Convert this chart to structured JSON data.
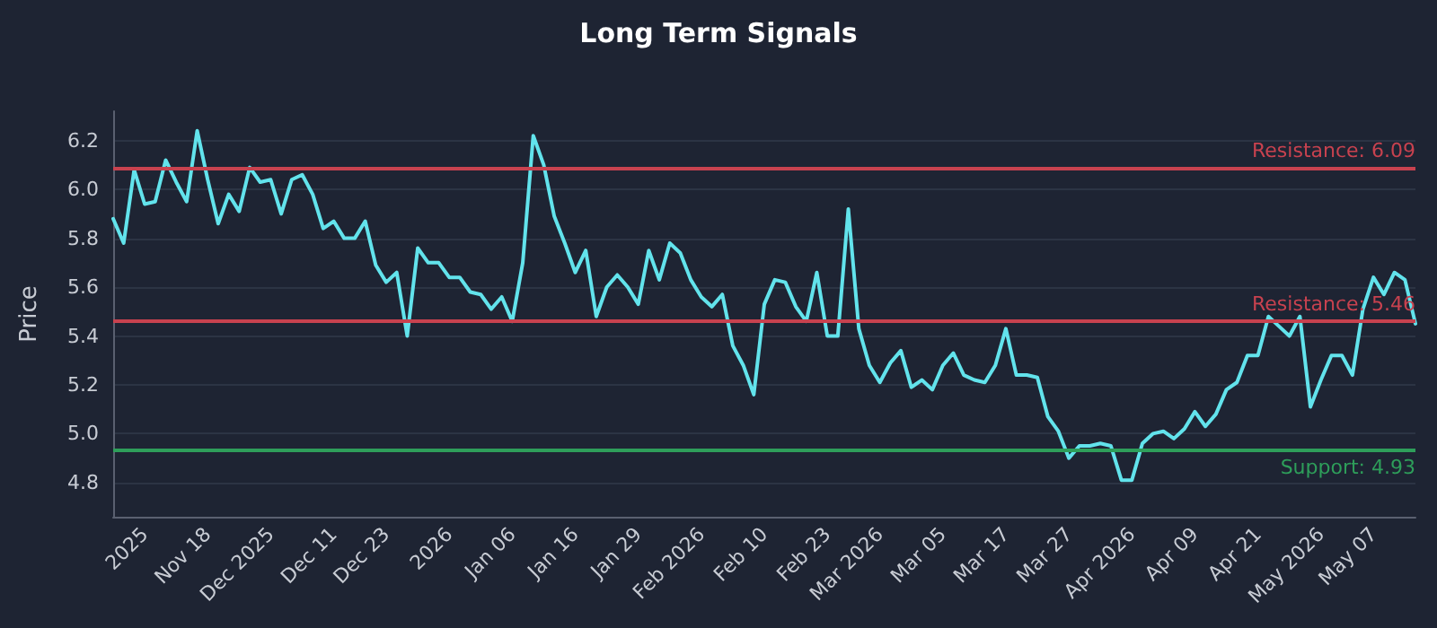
{
  "chart_data": {
    "type": "line",
    "title": "Long Term Signals",
    "ylabel": "Price",
    "categories": [
      null,
      null,
      null,
      "2025",
      null,
      null,
      null,
      null,
      null,
      "Nov 18",
      null,
      null,
      null,
      null,
      null,
      "Dec 2025",
      null,
      null,
      null,
      null,
      null,
      "Dec 11",
      null,
      null,
      null,
      null,
      "Dec 23",
      null,
      null,
      null,
      null,
      null,
      "2026",
      null,
      null,
      null,
      null,
      null,
      "Jan 06",
      null,
      null,
      null,
      null,
      null,
      "Jan 16",
      null,
      null,
      null,
      null,
      null,
      "Jan 29",
      null,
      null,
      null,
      null,
      null,
      "Feb 2026",
      null,
      null,
      null,
      null,
      null,
      "Feb 10",
      null,
      null,
      null,
      null,
      null,
      "Feb 23",
      null,
      null,
      null,
      null,
      "Mar 2026",
      null,
      null,
      null,
      null,
      null,
      "Mar 05",
      null,
      null,
      null,
      null,
      null,
      "Mar 17",
      null,
      null,
      null,
      null,
      null,
      "Mar 27",
      null,
      null,
      null,
      null,
      null,
      "Apr 2026",
      null,
      null,
      null,
      null,
      null,
      "Apr 09",
      null,
      null,
      null,
      null,
      null,
      "Apr 21",
      null,
      null,
      null,
      null,
      null,
      "May 2026",
      null,
      null,
      null,
      null,
      "May 07",
      null,
      null,
      null,
      null
    ],
    "series": [
      {
        "color": "#62e3ec",
        "values": [
          5.88,
          5.78,
          6.08,
          5.94,
          5.95,
          6.12,
          6.03,
          5.95,
          6.24,
          6.04,
          5.86,
          5.98,
          5.91,
          6.09,
          6.03,
          6.04,
          5.9,
          6.04,
          6.06,
          5.98,
          5.84,
          5.87,
          5.8,
          5.8,
          5.87,
          5.69,
          5.62,
          5.66,
          5.4,
          5.76,
          5.7,
          5.7,
          5.64,
          5.64,
          5.58,
          5.57,
          5.51,
          5.56,
          5.46,
          5.7,
          6.22,
          6.1,
          5.89,
          5.78,
          5.66,
          5.75,
          5.48,
          5.6,
          5.65,
          5.6,
          5.53,
          5.75,
          5.63,
          5.78,
          5.74,
          5.63,
          5.56,
          5.52,
          5.57,
          5.36,
          5.28,
          5.16,
          5.53,
          5.63,
          5.62,
          5.52,
          5.46,
          5.66,
          5.4,
          5.4,
          5.92,
          5.43,
          5.28,
          5.21,
          5.29,
          5.34,
          5.19,
          5.22,
          5.18,
          5.28,
          5.33,
          5.24,
          5.22,
          5.21,
          5.28,
          5.43,
          5.24,
          5.24,
          5.23,
          5.07,
          5.01,
          4.9,
          4.95,
          4.95,
          4.96,
          4.95,
          4.81,
          4.81,
          4.96,
          5.0,
          5.01,
          4.98,
          5.02,
          5.09,
          5.03,
          5.08,
          5.18,
          5.21,
          5.32,
          5.32,
          5.48,
          5.44,
          5.4,
          5.48,
          5.11,
          5.22,
          5.32,
          5.32,
          5.24,
          5.51,
          5.64,
          5.57,
          5.66,
          5.63,
          5.45
        ]
      }
    ],
    "ylim": [
      4.66,
      6.32
    ],
    "yticks": [
      4.8,
      {
        "value": 5,
        "label": "5.0"
      },
      5.2,
      5.4,
      5.6,
      5.8,
      {
        "value": 6,
        "label": "6.0"
      },
      6.2
    ],
    "grid": "y",
    "marker": "none",
    "line_style": "solid",
    "ref_lines": [
      {
        "axis": "y",
        "value": 6.09,
        "label": "Resistance: 6.09",
        "color": "#c8424f"
      },
      {
        "axis": "y",
        "value": 5.46,
        "label": "Resistance: 5.46",
        "color": "#c8424f"
      },
      {
        "axis": "y",
        "value": 4.93,
        "label": "Support: 4.93",
        "color": "#2e9e5a"
      }
    ]
  }
}
